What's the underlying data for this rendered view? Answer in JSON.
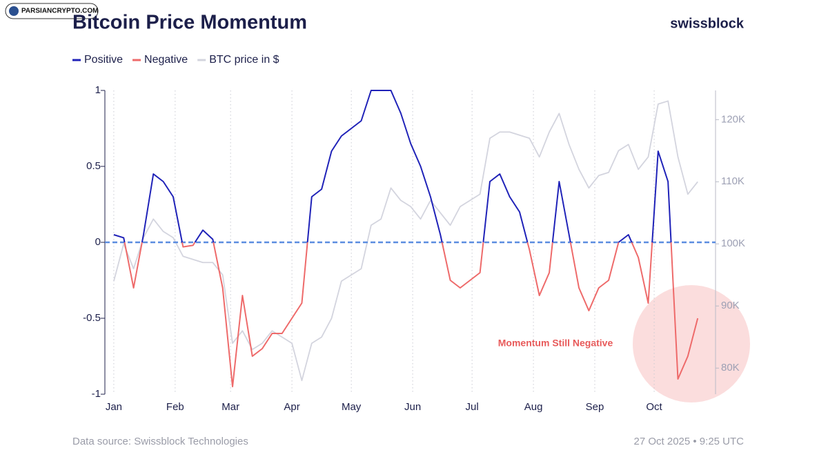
{
  "chart_data": {
    "type": "line",
    "watermark": "PARSIANCRYPTO.COM",
    "title": "Bitcoin Price Momentum",
    "brand": "swissblock",
    "annotation": "Momentum Still Negative",
    "source": "Data source: Swissblock Technologies",
    "timestamp": "27 Oct 2025 • 9:25 UTC",
    "xlim": [
      -0.9,
      60.8
    ],
    "xticks": [
      {
        "value": 0,
        "label": "Jan"
      },
      {
        "value": 6.2,
        "label": "Feb"
      },
      {
        "value": 11.8,
        "label": "Mar"
      },
      {
        "value": 18,
        "label": "Apr"
      },
      {
        "value": 24,
        "label": "May"
      },
      {
        "value": 30.2,
        "label": "Jun"
      },
      {
        "value": 36.2,
        "label": "Jul"
      },
      {
        "value": 42.4,
        "label": "Aug"
      },
      {
        "value": 48.6,
        "label": "Sep"
      },
      {
        "value": 54.6,
        "label": "Oct"
      }
    ],
    "xgrid": true,
    "ylim": [
      -1,
      1
    ],
    "yticks": [
      -1,
      -0.5,
      0,
      0.5,
      1
    ],
    "y2lim": [
      75800,
      124700
    ],
    "y2ticks": [
      {
        "value": 80000,
        "label": "80K"
      },
      {
        "value": 90000,
        "label": "90K"
      },
      {
        "value": 100000,
        "label": "100K"
      },
      {
        "value": 110000,
        "label": "110K"
      },
      {
        "value": 120000,
        "label": "120K"
      }
    ],
    "zero_line": {
      "value": 0,
      "color": "#5b8de0"
    },
    "series": [
      {
        "name": "Positive",
        "color": "#1f22b8",
        "negative": {
          "name": "Negative",
          "color": "#ee6a6a"
        },
        "values": [
          0.05,
          0.03,
          -0.3,
          0.05,
          0.45,
          0.4,
          0.3,
          -0.03,
          -0.02,
          0.08,
          0.02,
          -0.3,
          -0.95,
          -0.35,
          -0.75,
          -0.7,
          -0.6,
          -0.6,
          -0.5,
          -0.4,
          0.3,
          0.35,
          0.6,
          0.7,
          0.75,
          0.8,
          1,
          1,
          1,
          0.85,
          0.65,
          0.5,
          0.3,
          0.05,
          -0.25,
          -0.3,
          -0.25,
          -0.2,
          0.4,
          0.45,
          0.3,
          0.2,
          -0.05,
          -0.35,
          -0.2,
          0.4,
          0.05,
          -0.3,
          -0.45,
          -0.3,
          -0.25,
          0.0,
          0.05,
          -0.1,
          -0.4,
          0.6,
          0.4,
          -0.9,
          -0.75,
          -0.5
        ]
      },
      {
        "name": "BTC price in $",
        "color": "#d3d4de",
        "axis": "y2",
        "values": [
          94000,
          100000,
          96000,
          101000,
          104000,
          102000,
          101000,
          98000,
          97500,
          97000,
          97000,
          95000,
          84000,
          86000,
          83000,
          84000,
          86000,
          85000,
          84000,
          78000,
          84000,
          85000,
          88000,
          94000,
          95000,
          96000,
          103000,
          104000,
          109000,
          107000,
          106000,
          104000,
          107000,
          105000,
          103000,
          106000,
          107000,
          108000,
          117000,
          118000,
          118000,
          117500,
          117000,
          114000,
          118000,
          121000,
          116000,
          112000,
          109000,
          111000,
          111500,
          115000,
          116000,
          112000,
          114000,
          122500,
          123000,
          114000,
          108000,
          110000
        ]
      }
    ]
  }
}
